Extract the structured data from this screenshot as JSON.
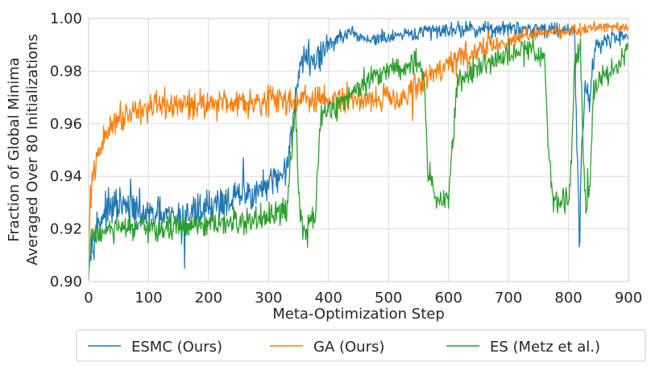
{
  "chart_data": {
    "type": "line",
    "title": "",
    "xlabel": "Meta-Optimization Step",
    "ylabel_line1": "Fraction of Global Minima",
    "ylabel_line2": "Averaged Over 80 Initializations",
    "xlim": [
      0,
      900
    ],
    "ylim": [
      0.9,
      1.0
    ],
    "xticks": [
      0,
      100,
      200,
      300,
      400,
      500,
      600,
      700,
      800,
      900
    ],
    "xtick_labels": [
      "0",
      "100",
      "200",
      "300",
      "400",
      "500",
      "600",
      "700",
      "800",
      "900"
    ],
    "yticks": [
      0.9,
      0.92,
      0.94,
      0.96,
      0.98,
      1.0
    ],
    "ytick_labels": [
      "0.90",
      "0.92",
      "0.94",
      "0.96",
      "0.98",
      "1.00"
    ],
    "grid": true,
    "legend_position": "bottom-center",
    "series": [
      {
        "name": "ESMC (Ours)",
        "color": "#1f77b4",
        "noise": 0.0055,
        "points": [
          [
            0,
            0.905
          ],
          [
            3,
            0.912
          ],
          [
            10,
            0.919
          ],
          [
            25,
            0.926
          ],
          [
            50,
            0.929
          ],
          [
            100,
            0.925
          ],
          [
            150,
            0.924
          ],
          [
            200,
            0.929
          ],
          [
            250,
            0.932
          ],
          [
            300,
            0.936
          ],
          [
            320,
            0.94
          ],
          [
            335,
            0.948
          ],
          [
            345,
            0.972
          ],
          [
            355,
            0.985
          ],
          [
            380,
            0.984
          ],
          [
            400,
            0.99
          ],
          [
            430,
            0.994
          ],
          [
            470,
            0.992
          ],
          [
            520,
            0.993
          ],
          [
            560,
            0.995
          ],
          [
            600,
            0.996
          ],
          [
            700,
            0.996
          ],
          [
            800,
            0.996
          ],
          [
            810,
            0.995
          ],
          [
            815,
            0.945
          ],
          [
            818,
            0.915
          ],
          [
            822,
            0.95
          ],
          [
            828,
            0.975
          ],
          [
            835,
            0.97
          ],
          [
            845,
            0.99
          ],
          [
            870,
            0.992
          ],
          [
            900,
            0.994
          ]
        ],
        "spikes": [
          [
            160,
            0.905
          ],
          [
            70,
            0.939
          ],
          [
            258,
            0.947
          ]
        ]
      },
      {
        "name": "GA (Ours)",
        "color": "#ff7f0e",
        "noise": 0.0045,
        "points": [
          [
            0,
            0.908
          ],
          [
            3,
            0.935
          ],
          [
            10,
            0.942
          ],
          [
            20,
            0.951
          ],
          [
            40,
            0.961
          ],
          [
            70,
            0.965
          ],
          [
            100,
            0.966
          ],
          [
            200,
            0.968
          ],
          [
            300,
            0.969
          ],
          [
            400,
            0.969
          ],
          [
            500,
            0.97
          ],
          [
            530,
            0.971
          ],
          [
            545,
            0.973
          ],
          [
            560,
            0.977
          ],
          [
            600,
            0.983
          ],
          [
            650,
            0.988
          ],
          [
            700,
            0.991
          ],
          [
            750,
            0.995
          ],
          [
            800,
            0.995
          ],
          [
            850,
            0.997
          ],
          [
            900,
            0.997
          ]
        ],
        "spikes": [
          [
            540,
            0.961
          ],
          [
            4,
            0.928
          ]
        ]
      },
      {
        "name": "ES (Metz et al.)",
        "color": "#2ca02c",
        "noise": 0.0042,
        "points": [
          [
            0,
            0.9
          ],
          [
            3,
            0.915
          ],
          [
            10,
            0.918
          ],
          [
            50,
            0.92
          ],
          [
            100,
            0.92
          ],
          [
            200,
            0.921
          ],
          [
            300,
            0.924
          ],
          [
            330,
            0.927
          ],
          [
            340,
            0.955
          ],
          [
            345,
            0.968
          ],
          [
            350,
            0.935
          ],
          [
            355,
            0.923
          ],
          [
            365,
            0.921
          ],
          [
            378,
            0.924
          ],
          [
            388,
            0.965
          ],
          [
            395,
            0.965
          ],
          [
            420,
            0.967
          ],
          [
            450,
            0.975
          ],
          [
            500,
            0.981
          ],
          [
            550,
            0.983
          ],
          [
            560,
            0.975
          ],
          [
            565,
            0.945
          ],
          [
            575,
            0.933
          ],
          [
            600,
            0.93
          ],
          [
            605,
            0.95
          ],
          [
            615,
            0.975
          ],
          [
            640,
            0.981
          ],
          [
            680,
            0.984
          ],
          [
            700,
            0.986
          ],
          [
            740,
            0.989
          ],
          [
            760,
            0.985
          ],
          [
            768,
            0.945
          ],
          [
            775,
            0.932
          ],
          [
            800,
            0.93
          ],
          [
            805,
            0.945
          ],
          [
            810,
            0.985
          ],
          [
            820,
            0.99
          ],
          [
            825,
            0.945
          ],
          [
            830,
            0.928
          ],
          [
            835,
            0.935
          ],
          [
            842,
            0.975
          ],
          [
            860,
            0.978
          ],
          [
            880,
            0.982
          ],
          [
            900,
            0.99
          ]
        ],
        "spikes": [
          [
            365,
            0.913
          ],
          [
            782,
            0.926
          ],
          [
            832,
            0.943
          ]
        ]
      }
    ]
  }
}
